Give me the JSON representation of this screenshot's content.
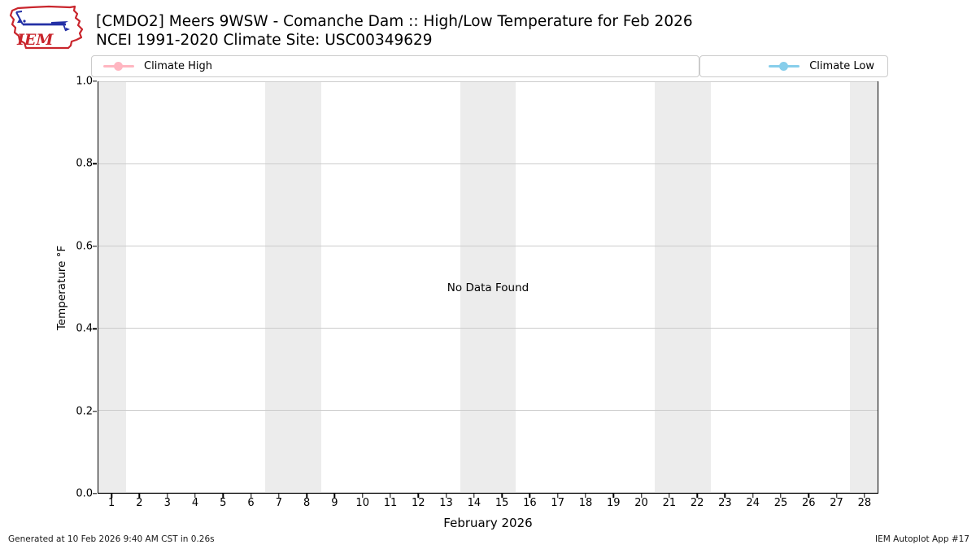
{
  "header": {
    "logo_text": "IEM",
    "title": "[CMDO2] Meers 9WSW - Comanche Dam :: High/Low Temperature for Feb 2026",
    "subtitle": "NCEI 1991-2020 Climate Site: USC00349629"
  },
  "legend": {
    "items": [
      {
        "label": "Climate High",
        "color": "#ffb6c1"
      },
      {
        "label": "Climate Low",
        "color": "#87ceeb"
      }
    ]
  },
  "chart_data": {
    "type": "line",
    "title": "[CMDO2] Meers 9WSW - Comanche Dam :: High/Low Temperature for Feb 2026",
    "subtitle": "NCEI 1991-2020 Climate Site: USC00349629",
    "xlabel": "February 2026",
    "ylabel": "Temperature °F",
    "xlim": [
      0.5,
      28.5
    ],
    "ylim": [
      0.0,
      1.0
    ],
    "xticks": [
      "1",
      "2",
      "3",
      "4",
      "5",
      "6",
      "7",
      "8",
      "9",
      "10",
      "11",
      "12",
      "13",
      "14",
      "15",
      "16",
      "17",
      "18",
      "19",
      "20",
      "21",
      "22",
      "23",
      "24",
      "25",
      "26",
      "27",
      "28"
    ],
    "yticks": [
      "0.0",
      "0.2",
      "0.4",
      "0.6",
      "0.8",
      "1.0"
    ],
    "grid": "horizontal gridlines only",
    "legend_position": "top strip, Climate High left / Climate Low right",
    "weekend_bands": [
      [
        0.5,
        1.5
      ],
      [
        6.5,
        8.5
      ],
      [
        13.5,
        15.5
      ],
      [
        20.5,
        22.5
      ],
      [
        27.5,
        28.5
      ]
    ],
    "band_color": "#ececec",
    "grid_color": "#cccccc",
    "series": [
      {
        "name": "Climate High",
        "color": "#ffb6c1",
        "values": []
      },
      {
        "name": "Climate Low",
        "color": "#87ceeb",
        "values": []
      }
    ],
    "annotation": "No Data Found"
  },
  "footer": {
    "left": "Generated at 10 Feb 2026 9:40 AM CST in 0.26s",
    "right": "IEM Autoplot App #17"
  }
}
